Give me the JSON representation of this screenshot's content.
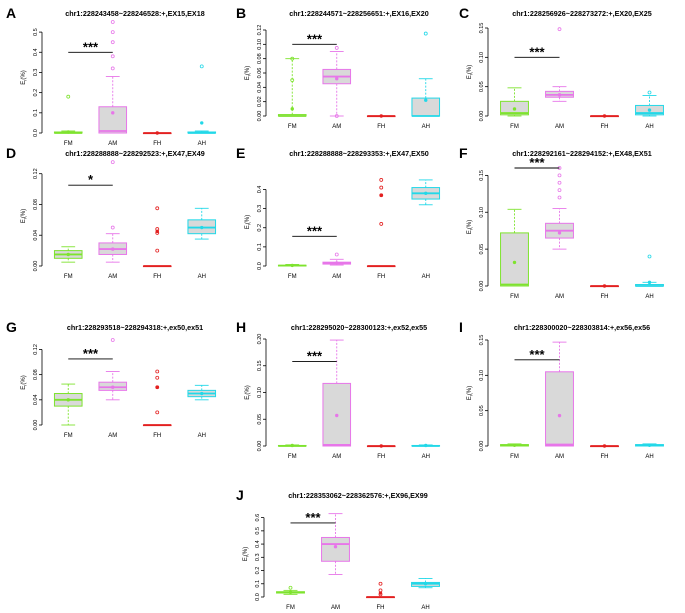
{
  "figure": {
    "groups": [
      "FM",
      "AM",
      "FH",
      "AH"
    ],
    "ylabel": "E<sub>I</sub>(%)",
    "colors": {
      "FM": "#7ee32e",
      "AM": "#e776e9",
      "FH": "#e32020",
      "AH": "#22d8e8",
      "box": "#d9d9d9"
    }
  },
  "chart_data": [
    {
      "type": "boxplot",
      "panel": "A",
      "title": "chr1:228243458~228246528:+,EX15,EX18",
      "ylim": [
        0,
        0.55
      ],
      "yticks": [
        "0.0",
        "0.1",
        "0.2",
        "0.3",
        "0.4",
        "0.5"
      ],
      "ytick_values": [
        0,
        0.1,
        0.2,
        0.3,
        0.4,
        0.5
      ],
      "significance": "***",
      "boxes": [
        {
          "group": "FM",
          "min": 0,
          "q1": 0,
          "median": 0,
          "q3": 0.005,
          "max": 0.01,
          "mean": 0.005,
          "outliers": [
            0.18
          ]
        },
        {
          "group": "AM",
          "min": 0,
          "q1": 0,
          "median": 0.01,
          "q3": 0.13,
          "max": 0.28,
          "mean": 0.1,
          "outliers": [
            0.32,
            0.38,
            0.45,
            0.5,
            0.55
          ]
        },
        {
          "group": "FH",
          "min": 0,
          "q1": 0,
          "median": 0,
          "q3": 0,
          "max": 0,
          "mean": 0,
          "outliers": []
        },
        {
          "group": "AH",
          "min": 0,
          "q1": 0,
          "median": 0,
          "q3": 0.005,
          "max": 0.01,
          "mean": 0.05,
          "outliers": [
            0.33
          ]
        }
      ]
    },
    {
      "type": "boxplot",
      "panel": "B",
      "title": "chr1:228244571~228256651:+,EX16,EX20",
      "ylim": [
        0,
        0.12
      ],
      "yticks": [
        "0.00",
        "0.02",
        "0.04",
        "0.06",
        "0.08",
        "0.10",
        "0.12"
      ],
      "ytick_values": [
        0,
        0.02,
        0.04,
        0.06,
        0.08,
        0.1,
        0.12
      ],
      "significance": "***",
      "boxes": [
        {
          "group": "FM",
          "min": 0,
          "q1": 0,
          "median": 0,
          "q3": 0.002,
          "max": 0.08,
          "mean": 0.01,
          "outliers": [
            0.05,
            0.08
          ]
        },
        {
          "group": "AM",
          "min": 0,
          "q1": 0.045,
          "median": 0.055,
          "q3": 0.065,
          "max": 0.09,
          "mean": 0.052,
          "outliers": [
            0.095,
            0.0
          ]
        },
        {
          "group": "FH",
          "min": 0,
          "q1": 0,
          "median": 0,
          "q3": 0,
          "max": 0,
          "mean": 0,
          "outliers": []
        },
        {
          "group": "AH",
          "min": 0,
          "q1": 0,
          "median": 0,
          "q3": 0.025,
          "max": 0.052,
          "mean": 0.022,
          "outliers": [
            0.115
          ]
        }
      ]
    },
    {
      "type": "boxplot",
      "panel": "C",
      "title": "chr1:228256926~228273272:+,EX20,EX25",
      "ylim": [
        0,
        0.15
      ],
      "yticks": [
        "0.00",
        "0.05",
        "0.10",
        "0.15"
      ],
      "ytick_values": [
        0,
        0.05,
        0.1,
        0.15
      ],
      "significance": "***",
      "boxes": [
        {
          "group": "FM",
          "min": 0,
          "q1": 0.002,
          "median": 0.005,
          "q3": 0.025,
          "max": 0.048,
          "mean": 0.012,
          "outliers": []
        },
        {
          "group": "AM",
          "min": 0.025,
          "q1": 0.032,
          "median": 0.036,
          "q3": 0.042,
          "max": 0.05,
          "mean": 0.036,
          "outliers": [
            0.148
          ]
        },
        {
          "group": "FH",
          "min": 0,
          "q1": 0,
          "median": 0,
          "q3": 0,
          "max": 0,
          "mean": 0,
          "outliers": []
        },
        {
          "group": "AH",
          "min": 0,
          "q1": 0.002,
          "median": 0.005,
          "q3": 0.018,
          "max": 0.035,
          "mean": 0.01,
          "outliers": [
            0.04
          ]
        }
      ]
    },
    {
      "type": "boxplot",
      "panel": "D",
      "title": "chr1:228288888~228292523:+,EX47,EX49",
      "ylim": [
        0,
        0.13
      ],
      "yticks": [
        "0.00",
        "0.04",
        "0.08",
        "0.12"
      ],
      "ytick_values": [
        0,
        0.04,
        0.08,
        0.12
      ],
      "significance": "*",
      "boxes": [
        {
          "group": "FM",
          "min": 0.005,
          "q1": 0.01,
          "median": 0.015,
          "q3": 0.02,
          "max": 0.025,
          "mean": 0.015,
          "outliers": []
        },
        {
          "group": "AM",
          "min": 0.005,
          "q1": 0.015,
          "median": 0.022,
          "q3": 0.03,
          "max": 0.042,
          "mean": 0.022,
          "outliers": [
            0.05,
            0.135
          ]
        },
        {
          "group": "FH",
          "min": 0,
          "q1": 0,
          "median": 0,
          "q3": 0,
          "max": 0,
          "mean": 0.045,
          "outliers": [
            0.02,
            0.043,
            0.048,
            0.075
          ]
        },
        {
          "group": "AH",
          "min": 0.035,
          "q1": 0.042,
          "median": 0.05,
          "q3": 0.06,
          "max": 0.075,
          "mean": 0.05,
          "outliers": []
        }
      ]
    },
    {
      "type": "boxplot",
      "panel": "E",
      "title": "chr1:228288888~228293353:+,EX47,EX50",
      "ylim": [
        0,
        0.46
      ],
      "yticks": [
        "0.0",
        "0.1",
        "0.2",
        "0.3",
        "0.4"
      ],
      "ytick_values": [
        0,
        0.1,
        0.2,
        0.3,
        0.4
      ],
      "significance": "***",
      "boxes": [
        {
          "group": "FM",
          "min": 0,
          "q1": 0,
          "median": 0.002,
          "q3": 0.004,
          "max": 0.008,
          "mean": 0.003,
          "outliers": []
        },
        {
          "group": "AM",
          "min": 0.005,
          "q1": 0.01,
          "median": 0.015,
          "q3": 0.02,
          "max": 0.035,
          "mean": 0.015,
          "outliers": [
            0.06
          ]
        },
        {
          "group": "FH",
          "min": 0,
          "q1": 0,
          "median": 0,
          "q3": 0,
          "max": 0,
          "mean": 0.37,
          "outliers": [
            0.22,
            0.37,
            0.41,
            0.45
          ]
        },
        {
          "group": "AH",
          "min": 0.32,
          "q1": 0.35,
          "median": 0.38,
          "q3": 0.41,
          "max": 0.45,
          "mean": 0.38,
          "outliers": []
        }
      ]
    },
    {
      "type": "boxplot",
      "panel": "F",
      "title": "chr1:228292161~228294152:+,EX48,EX51",
      "ylim": [
        0,
        0.16
      ],
      "yticks": [
        "0.00",
        "0.05",
        "0.10",
        "0.15"
      ],
      "ytick_values": [
        0,
        0.05,
        0.1,
        0.15
      ],
      "significance": "***",
      "boxes": [
        {
          "group": "FM",
          "min": 0,
          "q1": 0,
          "median": 0.002,
          "q3": 0.072,
          "max": 0.104,
          "mean": 0.032,
          "outliers": []
        },
        {
          "group": "AM",
          "min": 0.05,
          "q1": 0.065,
          "median": 0.075,
          "q3": 0.085,
          "max": 0.105,
          "mean": 0.072,
          "outliers": [
            0.12,
            0.13,
            0.14,
            0.15,
            0.16
          ]
        },
        {
          "group": "FH",
          "min": 0,
          "q1": 0,
          "median": 0,
          "q3": 0,
          "max": 0,
          "mean": 0,
          "outliers": []
        },
        {
          "group": "AH",
          "min": 0,
          "q1": 0,
          "median": 0,
          "q3": 0.002,
          "max": 0.005,
          "mean": 0.005,
          "outliers": [
            0.04
          ]
        }
      ]
    },
    {
      "type": "boxplot",
      "panel": "G",
      "title": "chr1:228293518~228294318:+,ex50,ex51",
      "ylim": [
        0,
        0.135
      ],
      "yticks": [
        "0.00",
        "0.04",
        "0.08",
        "0.12"
      ],
      "ytick_values": [
        0,
        0.04,
        0.08,
        0.12
      ],
      "significance": "***",
      "boxes": [
        {
          "group": "FM",
          "min": 0,
          "q1": 0.03,
          "median": 0.04,
          "q3": 0.05,
          "max": 0.065,
          "mean": 0.04,
          "outliers": []
        },
        {
          "group": "AM",
          "min": 0.04,
          "q1": 0.055,
          "median": 0.06,
          "q3": 0.068,
          "max": 0.085,
          "mean": 0.06,
          "outliers": [
            0.135
          ]
        },
        {
          "group": "FH",
          "min": 0,
          "q1": 0,
          "median": 0,
          "q3": 0,
          "max": 0,
          "mean": 0.06,
          "outliers": [
            0.02,
            0.06,
            0.075,
            0.085
          ]
        },
        {
          "group": "AH",
          "min": 0.04,
          "q1": 0.045,
          "median": 0.05,
          "q3": 0.055,
          "max": 0.063,
          "mean": 0.05,
          "outliers": []
        }
      ]
    },
    {
      "type": "boxplot",
      "panel": "H",
      "title": "chr1:228295020~228300123:+,ex52,ex55",
      "ylim": [
        0,
        0.2
      ],
      "yticks": [
        "0.00",
        "0.05",
        "0.10",
        "0.15",
        "0.20"
      ],
      "ytick_values": [
        0,
        0.05,
        0.1,
        0.15,
        0.2
      ],
      "significance": "***",
      "boxes": [
        {
          "group": "FM",
          "min": 0,
          "q1": 0,
          "median": 0,
          "q3": 0.001,
          "max": 0.002,
          "mean": 0.001,
          "outliers": []
        },
        {
          "group": "AM",
          "min": 0,
          "q1": 0,
          "median": 0.002,
          "q3": 0.117,
          "max": 0.198,
          "mean": 0.057,
          "outliers": []
        },
        {
          "group": "FH",
          "min": 0,
          "q1": 0,
          "median": 0,
          "q3": 0,
          "max": 0,
          "mean": 0,
          "outliers": []
        },
        {
          "group": "AH",
          "min": 0,
          "q1": 0,
          "median": 0,
          "q3": 0.001,
          "max": 0.002,
          "mean": 0.001,
          "outliers": []
        }
      ]
    },
    {
      "type": "boxplot",
      "panel": "I",
      "title": "chr1:228300020~228303814:+,ex56,ex56",
      "ylim": [
        0,
        0.15
      ],
      "yticks": [
        "0.00",
        "0.05",
        "0.10",
        "0.15"
      ],
      "ytick_values": [
        0,
        0.05,
        0.1,
        0.15
      ],
      "significance": "***",
      "boxes": [
        {
          "group": "FM",
          "min": 0,
          "q1": 0,
          "median": 0.001,
          "q3": 0.002,
          "max": 0.003,
          "mean": 0.001,
          "outliers": []
        },
        {
          "group": "AM",
          "min": 0,
          "q1": 0,
          "median": 0.002,
          "q3": 0.105,
          "max": 0.147,
          "mean": 0.043,
          "outliers": []
        },
        {
          "group": "FH",
          "min": 0,
          "q1": 0,
          "median": 0,
          "q3": 0,
          "max": 0,
          "mean": 0,
          "outliers": []
        },
        {
          "group": "AH",
          "min": 0,
          "q1": 0,
          "median": 0.001,
          "q3": 0.002,
          "max": 0.003,
          "mean": 0.001,
          "outliers": []
        }
      ]
    },
    {
      "type": "boxplot",
      "panel": "J",
      "title": "chr1:228353062~228362576:+,EX96,EX99",
      "ylim": [
        0,
        0.65
      ],
      "yticks": [
        "0.0",
        "0.1",
        "0.2",
        "0.3",
        "0.4",
        "0.5",
        "0.6"
      ],
      "ytick_values": [
        0,
        0.1,
        0.2,
        0.3,
        0.4,
        0.5,
        0.6
      ],
      "significance": "***",
      "boxes": [
        {
          "group": "FM",
          "min": 0.02,
          "q1": 0.03,
          "median": 0.035,
          "q3": 0.04,
          "max": 0.05,
          "mean": 0.035,
          "outliers": [
            0.07
          ]
        },
        {
          "group": "AM",
          "min": 0.17,
          "q1": 0.27,
          "median": 0.4,
          "q3": 0.45,
          "max": 0.63,
          "mean": 0.38,
          "outliers": []
        },
        {
          "group": "FH",
          "min": 0,
          "q1": 0,
          "median": 0,
          "q3": 0,
          "max": 0,
          "mean": 0.03,
          "outliers": [
            0.02,
            0.05,
            0.1
          ]
        },
        {
          "group": "AH",
          "min": 0.07,
          "q1": 0.08,
          "median": 0.1,
          "q3": 0.11,
          "max": 0.14,
          "mean": 0.1,
          "outliers": []
        }
      ]
    }
  ]
}
